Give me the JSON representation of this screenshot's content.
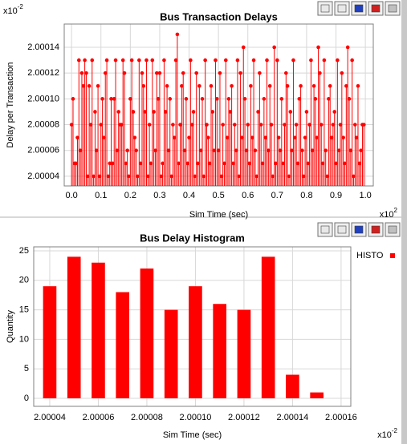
{
  "chart_data": [
    {
      "type": "stem",
      "title": "Bus Transaction Delays",
      "x_label": "Sim Time (sec)",
      "y_label": "Delay per Transaction",
      "x_multiplier": {
        "base": "x10",
        "exponent": "2"
      },
      "y_multiplier": {
        "base": "x10",
        "exponent": "-2"
      },
      "color": "#ff0000",
      "grid": true,
      "xlim": [
        -0.025,
        1.027
      ],
      "ylim": [
        2.0000325,
        2.000158
      ],
      "xticks": [
        {
          "value": 0,
          "label": "0.0"
        },
        0.1,
        0.2,
        0.3,
        0.4,
        0.5,
        0.6,
        0.7,
        0.8,
        0.9,
        {
          "value": 1,
          "label": "1.0"
        }
      ],
      "yticks": [
        2.00004,
        2.00006,
        2.00008,
        {
          "value": 2.0001,
          "label": "2.00010"
        },
        2.00012,
        2.00014
      ],
      "x": [
        0,
        0.005,
        0.01,
        0.015,
        0.02,
        0.025,
        0.03,
        0.035,
        0.04,
        0.045,
        0.05,
        0.055,
        0.06,
        0.065,
        0.07,
        0.075,
        0.08,
        0.085,
        0.09,
        0.095,
        0.1,
        0.105,
        0.11,
        0.115,
        0.12,
        0.125,
        0.13,
        0.135,
        0.14,
        0.145,
        0.15,
        0.155,
        0.16,
        0.165,
        0.17,
        0.175,
        0.18,
        0.185,
        0.19,
        0.195,
        0.2,
        0.205,
        0.21,
        0.215,
        0.22,
        0.225,
        0.23,
        0.235,
        0.24,
        0.245,
        0.25,
        0.255,
        0.26,
        0.265,
        0.27,
        0.275,
        0.28,
        0.285,
        0.29,
        0.295,
        0.3,
        0.305,
        0.31,
        0.315,
        0.32,
        0.325,
        0.33,
        0.335,
        0.34,
        0.345,
        0.35,
        0.355,
        0.36,
        0.365,
        0.37,
        0.375,
        0.38,
        0.385,
        0.39,
        0.395,
        0.4,
        0.405,
        0.41,
        0.415,
        0.42,
        0.425,
        0.43,
        0.435,
        0.44,
        0.445,
        0.45,
        0.455,
        0.46,
        0.465,
        0.47,
        0.475,
        0.48,
        0.485,
        0.49,
        0.495,
        0.5,
        0.505,
        0.51,
        0.515,
        0.52,
        0.525,
        0.53,
        0.535,
        0.54,
        0.545,
        0.55,
        0.555,
        0.56,
        0.565,
        0.57,
        0.575,
        0.58,
        0.585,
        0.59,
        0.595,
        0.6,
        0.605,
        0.61,
        0.615,
        0.62,
        0.625,
        0.63,
        0.635,
        0.64,
        0.645,
        0.65,
        0.655,
        0.66,
        0.665,
        0.67,
        0.675,
        0.68,
        0.685,
        0.69,
        0.695,
        0.7,
        0.705,
        0.71,
        0.715,
        0.72,
        0.725,
        0.73,
        0.735,
        0.74,
        0.745,
        0.75,
        0.755,
        0.76,
        0.765,
        0.77,
        0.775,
        0.78,
        0.785,
        0.79,
        0.795,
        0.8,
        0.805,
        0.81,
        0.815,
        0.82,
        0.825,
        0.83,
        0.835,
        0.84,
        0.845,
        0.85,
        0.855,
        0.86,
        0.865,
        0.87,
        0.875,
        0.88,
        0.885,
        0.89,
        0.895,
        0.9,
        0.905,
        0.91,
        0.915,
        0.92,
        0.925,
        0.93,
        0.935,
        0.94,
        0.945,
        0.95,
        0.955,
        0.96,
        0.965,
        0.97,
        0.975,
        0.98,
        0.985,
        0.99,
        0.995
      ],
      "values": [
        2.00008,
        2.0001,
        2.00005,
        2.00005,
        2.00007,
        2.00013,
        2.00006,
        2.00012,
        2.00011,
        2.00013,
        2.00012,
        2.00004,
        2.00011,
        2.00008,
        2.00013,
        2.00004,
        2.00009,
        2.00006,
        2.00011,
        2.00004,
        2.00008,
        2.0001,
        2.00007,
        2.00012,
        2.00013,
        2.00004,
        2.00005,
        2.0001,
        2.00005,
        2.0001,
        2.00013,
        2.00006,
        2.00009,
        2.00008,
        2.00008,
        2.00013,
        2.00012,
        2.00005,
        2.00006,
        2.00004,
        2.0001,
        2.00013,
        2.00009,
        2.00007,
        2.00006,
        2.00004,
        2.00013,
        2.00005,
        2.00012,
        2.00011,
        2.00009,
        2.00013,
        2.00004,
        2.00008,
        2.00005,
        2.00013,
        2.00009,
        2.00006,
        2.00012,
        2.0001,
        2.00012,
        2.00004,
        2.00005,
        2.00013,
        2.00009,
        2.00011,
        2.00006,
        2.0001,
        2.00004,
        2.00008,
        2.00007,
        2.00013,
        2.00015,
        2.00005,
        2.00008,
        2.00011,
        2.00012,
        2.00006,
        2.0001,
        2.00005,
        2.00007,
        2.00013,
        2.00008,
        2.00009,
        2.00004,
        2.00012,
        2.00005,
        2.00011,
        2.00006,
        2.0001,
        2.00004,
        2.00013,
        2.00008,
        2.00007,
        2.00005,
        2.00011,
        2.00009,
        2.00006,
        2.00013,
        2.0001,
        2.00006,
        2.00012,
        2.00004,
        2.00008,
        2.00005,
        2.00013,
        2.00007,
        2.0001,
        2.00009,
        2.00011,
        2.00005,
        2.00008,
        2.00006,
        2.00013,
        2.00004,
        2.00012,
        2.00007,
        2.00014,
        2.0001,
        2.00006,
        2.00008,
        2.00005,
        2.00011,
        2.00007,
        2.00013,
        2.00006,
        2.00004,
        2.00009,
        2.00012,
        2.00008,
        2.00005,
        2.0001,
        2.00007,
        2.00013,
        2.00006,
        2.00011,
        2.00008,
        2.00004,
        2.00014,
        2.00005,
        2.00013,
        2.00007,
        2.00006,
        2.0001,
        2.00005,
        2.00008,
        2.00012,
        2.00011,
        2.00004,
        2.00009,
        2.00006,
        2.00013,
        2.00007,
        2.00008,
        2.00005,
        2.0001,
        2.00011,
        2.00006,
        2.00004,
        2.00007,
        2.00009,
        2.00005,
        2.00008,
        2.00013,
        2.00006,
        2.00011,
        2.0001,
        2.00007,
        2.00014,
        2.00012,
        2.00008,
        2.00005,
        2.00013,
        2.00006,
        2.00004,
        2.0001,
        2.00011,
        2.00007,
        2.00008,
        2.00009,
        2.00005,
        2.00013,
        2.00006,
        2.00008,
        2.00012,
        2.00007,
        2.00005,
        2.00011,
        2.00014,
        2.0001,
        2.00006,
        2.00013,
        2.00004,
        2.00008,
        2.00007,
        2.00011,
        2.00005,
        2.00006,
        2.00008,
        2.00008
      ]
    },
    {
      "type": "bar",
      "title": "Bus Delay Histogram",
      "x_label": "Sim Time (sec)",
      "y_label": "Quantity",
      "x_multiplier": {
        "base": "x10",
        "exponent": "-2"
      },
      "grid": true,
      "legend": "right",
      "xlim": [
        2.0000334,
        2.000164
      ],
      "ylim": [
        -1.36,
        25.68
      ],
      "xticks": [
        2.00004,
        2.00006,
        2.00008,
        {
          "value": 2.0001,
          "label": "2.00010"
        },
        2.00012,
        2.00014,
        2.00016
      ],
      "yticks": [
        0,
        5,
        10,
        15,
        20,
        25
      ],
      "x": [
        2.00004,
        2.00005,
        2.00006,
        2.00007,
        2.00008,
        2.00009,
        2.0001,
        2.00011,
        2.00012,
        2.00013,
        2.00014,
        2.00015
      ],
      "series": [
        {
          "name": "HISTO",
          "color": "#ff0000",
          "values": [
            19,
            24,
            23,
            18,
            22,
            15,
            19,
            16,
            15,
            24,
            4,
            1
          ]
        }
      ]
    }
  ]
}
